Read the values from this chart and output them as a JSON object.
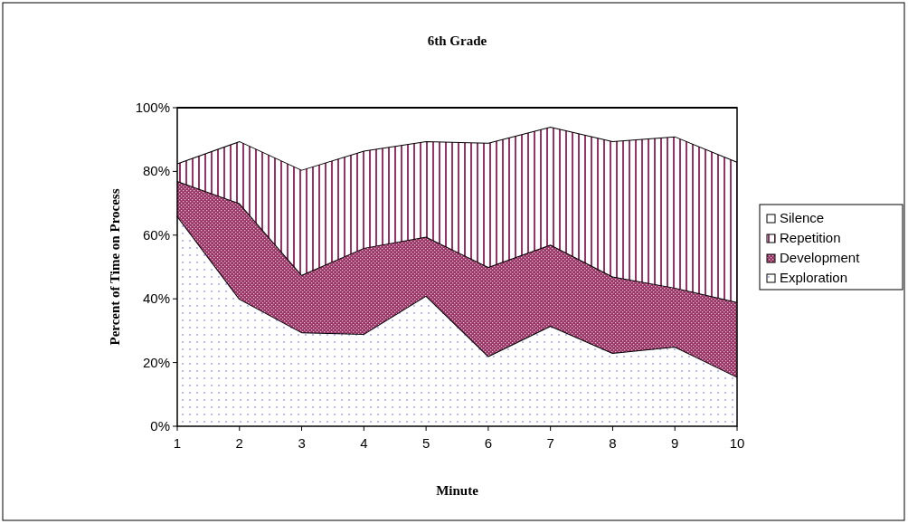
{
  "chart_data": {
    "type": "area",
    "title": "6th Grade",
    "xlabel": "Minute",
    "ylabel": "Percent of Time on Process",
    "stacked": true,
    "x": [
      1,
      2,
      3,
      4,
      5,
      6,
      7,
      8,
      9,
      10
    ],
    "xlim": [
      1,
      10
    ],
    "xticks": [
      1,
      2,
      3,
      4,
      5,
      6,
      7,
      8,
      9,
      10
    ],
    "ylim": [
      0,
      100
    ],
    "yticks": [
      {
        "value": 0,
        "label": "0%"
      },
      {
        "value": 20,
        "label": "20%"
      },
      {
        "value": 40,
        "label": "40%"
      },
      {
        "value": 60,
        "label": "60%"
      },
      {
        "value": 80,
        "label": "80%"
      },
      {
        "value": 100,
        "label": "100%"
      }
    ],
    "grid": false,
    "legend": "right",
    "series": [
      {
        "name": "Exploration",
        "color": "#9999ff",
        "values": [
          66,
          40,
          29.5,
          29,
          41,
          22,
          31.5,
          23,
          25,
          15.5
        ]
      },
      {
        "name": "Development",
        "color": "#993366",
        "values": [
          11,
          30,
          18,
          27,
          18.5,
          28,
          25.5,
          24,
          18.5,
          23.5
        ]
      },
      {
        "name": "Repetition",
        "color": "#993366",
        "values": [
          5.5,
          19.5,
          33,
          30.5,
          30,
          39,
          37,
          42.5,
          47.5,
          44
        ]
      },
      {
        "name": "Silence",
        "color": "#ffffff",
        "values": [
          17.5,
          10.5,
          19.5,
          13.5,
          10.5,
          11,
          6,
          10.5,
          9,
          17
        ]
      }
    ]
  }
}
